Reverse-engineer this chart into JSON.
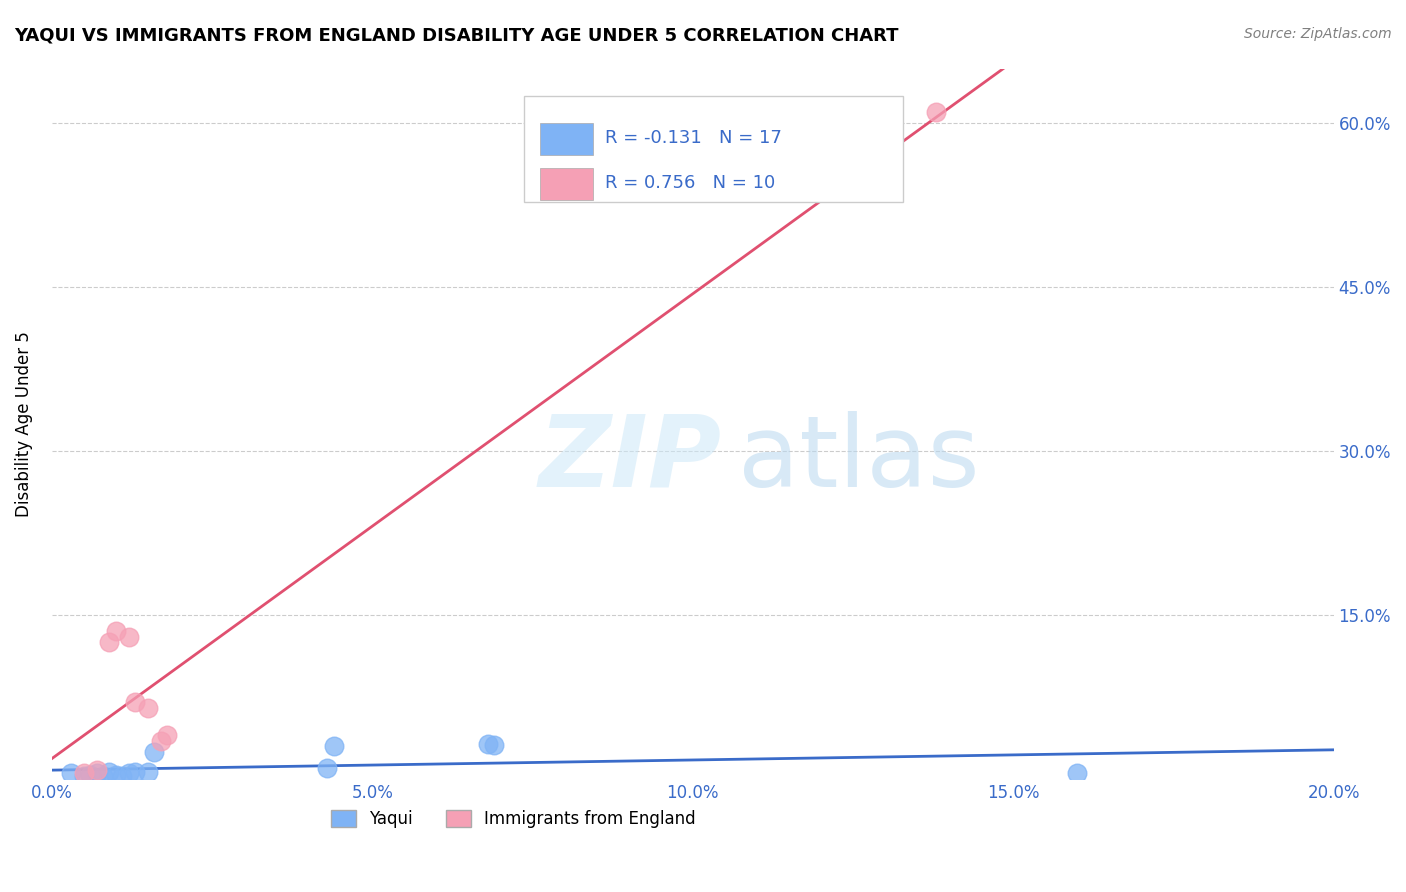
{
  "title": "YAQUI VS IMMIGRANTS FROM ENGLAND DISABILITY AGE UNDER 5 CORRELATION CHART",
  "source": "Source: ZipAtlas.com",
  "ylabel": "Disability Age Under 5",
  "xlim": [
    0.0,
    0.2
  ],
  "ylim": [
    0.0,
    0.65
  ],
  "xtick_labels": [
    "0.0%",
    "5.0%",
    "10.0%",
    "15.0%",
    "20.0%"
  ],
  "xtick_vals": [
    0.0,
    0.05,
    0.1,
    0.15,
    0.2
  ],
  "ytick_labels": [
    "15.0%",
    "30.0%",
    "45.0%",
    "60.0%"
  ],
  "ytick_vals": [
    0.15,
    0.3,
    0.45,
    0.6
  ],
  "yaqui_color": "#7fb3f5",
  "england_color": "#f5a0b5",
  "yaqui_line_color": "#3a6bc9",
  "england_line_color": "#e05070",
  "yaqui_R": -0.131,
  "yaqui_N": 17,
  "england_R": 0.756,
  "england_N": 10,
  "yaqui_x": [
    0.003,
    0.005,
    0.006,
    0.007,
    0.008,
    0.009,
    0.01,
    0.011,
    0.012,
    0.013,
    0.015,
    0.016,
    0.043,
    0.044,
    0.068,
    0.069,
    0.16
  ],
  "yaqui_y": [
    0.005,
    0.003,
    0.004,
    0.005,
    0.003,
    0.006,
    0.004,
    0.003,
    0.005,
    0.006,
    0.006,
    0.025,
    0.01,
    0.03,
    0.032,
    0.031,
    0.005
  ],
  "england_x": [
    0.005,
    0.007,
    0.009,
    0.01,
    0.012,
    0.013,
    0.015,
    0.017,
    0.018,
    0.138
  ],
  "england_y": [
    0.005,
    0.008,
    0.125,
    0.135,
    0.13,
    0.07,
    0.065,
    0.035,
    0.04,
    0.61
  ]
}
